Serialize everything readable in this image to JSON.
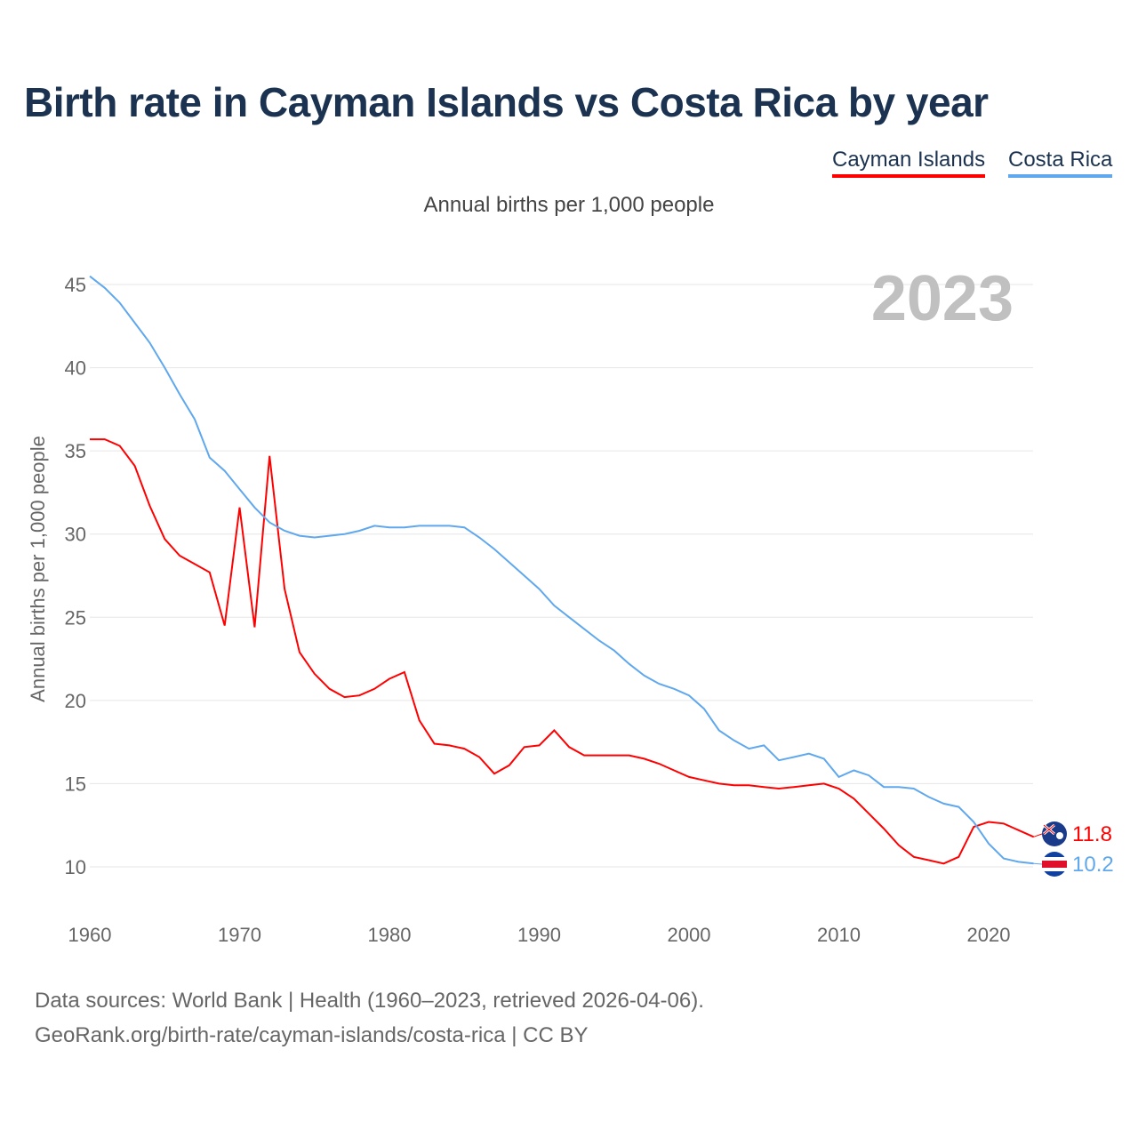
{
  "title": "Birth rate in Cayman Islands vs Costa Rica by year",
  "subtitle": "Annual births per 1,000 people",
  "footer": {
    "line1": "Data sources: World Bank | Health (1960–2023, retrieved 2026-04-06).",
    "line2": "GeoRank.org/birth-rate/cayman-islands/costa-rica | CC BY"
  },
  "year_badge": "2023",
  "chart_data": {
    "type": "line",
    "title": "Birth rate in Cayman Islands vs Costa Rica by year",
    "xlabel": "",
    "ylabel": "Annual births per 1,000 people",
    "ylim": [
      10,
      45
    ],
    "xlim": [
      1960,
      2023
    ],
    "yticks": [
      "10",
      "15",
      "20",
      "25",
      "30",
      "35",
      "40",
      "45"
    ],
    "xticks": [
      "1960",
      "1970",
      "1980",
      "1990",
      "2000",
      "2010",
      "2020"
    ],
    "grid": true,
    "legend_placement": "top-right",
    "x_start": 1960,
    "series": [
      {
        "name": "Cayman Islands",
        "color": "#ff0000",
        "end_label": "11.8",
        "flag": "cayman-islands-flag",
        "values": [
          35.7,
          35.7,
          35.3,
          34.1,
          31.7,
          29.7,
          28.7,
          28.2,
          27.7,
          24.5,
          31.6,
          24.4,
          34.7,
          26.7,
          22.9,
          21.6,
          20.7,
          20.2,
          20.3,
          20.7,
          21.3,
          21.7,
          18.8,
          17.4,
          17.3,
          17.1,
          16.6,
          15.6,
          16.1,
          17.2,
          17.3,
          18.2,
          17.2,
          16.7,
          16.7,
          16.7,
          16.7,
          16.5,
          16.2,
          15.8,
          15.4,
          15.2,
          15.0,
          14.9,
          14.9,
          14.8,
          14.7,
          14.8,
          14.9,
          15.0,
          14.7,
          14.1,
          13.2,
          12.3,
          11.3,
          10.6,
          10.4,
          10.2,
          10.6,
          12.4,
          12.7,
          12.6,
          12.2,
          11.8
        ]
      },
      {
        "name": "Costa Rica",
        "color": "#60a8ee",
        "end_label": "10.2",
        "flag": "costa-rica-flag",
        "values": [
          45.5,
          44.8,
          43.9,
          42.7,
          41.5,
          40.0,
          38.4,
          36.9,
          34.6,
          33.8,
          32.7,
          31.6,
          30.7,
          30.2,
          29.9,
          29.8,
          29.9,
          30.0,
          30.2,
          30.5,
          30.4,
          30.4,
          30.5,
          30.5,
          30.5,
          30.4,
          29.8,
          29.1,
          28.3,
          27.5,
          26.7,
          25.7,
          25.0,
          24.3,
          23.6,
          23.0,
          22.2,
          21.5,
          21.0,
          20.7,
          20.3,
          19.5,
          18.2,
          17.6,
          17.1,
          17.3,
          16.4,
          16.6,
          16.8,
          16.5,
          15.4,
          15.8,
          15.5,
          14.8,
          14.8,
          14.7,
          14.2,
          13.8,
          13.6,
          12.7,
          11.4,
          10.5,
          10.3,
          10.2
        ]
      }
    ]
  }
}
